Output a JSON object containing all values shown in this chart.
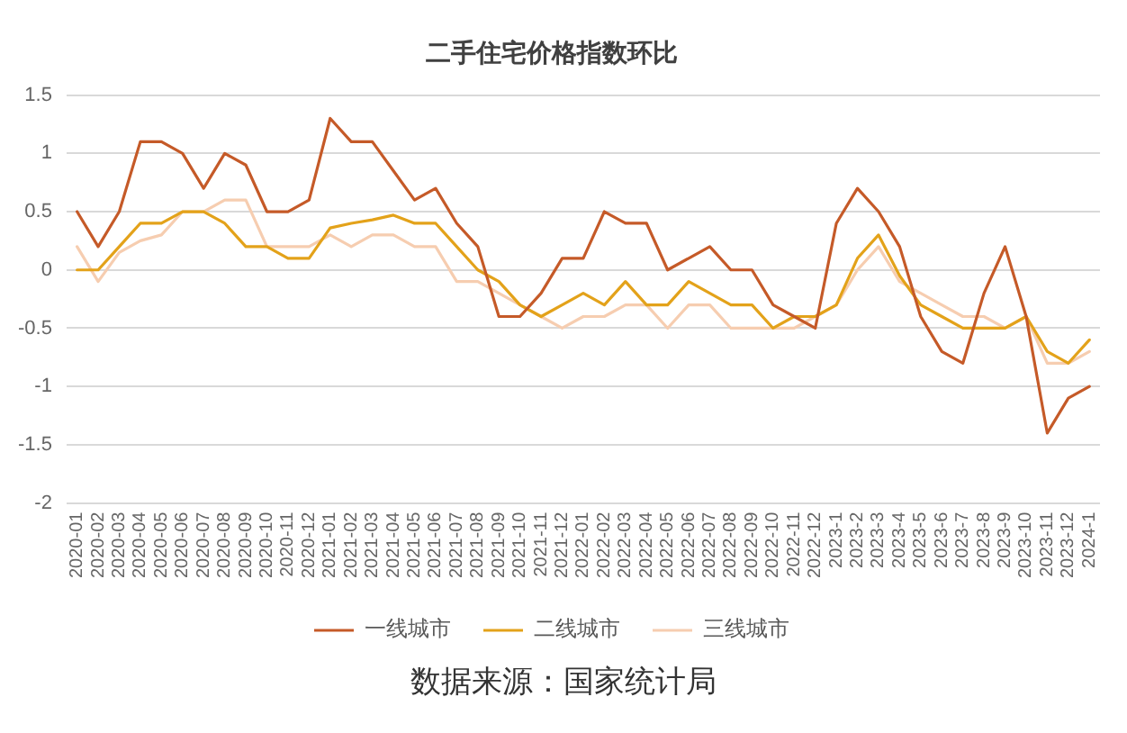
{
  "chart_data": {
    "type": "line",
    "title": "二手住宅价格指数环比",
    "categories": [
      "2020-01",
      "2020-02",
      "2020-03",
      "2020-04",
      "2020-05",
      "2020-06",
      "2020-07",
      "2020-08",
      "2020-09",
      "2020-10",
      "2020-11",
      "2020-12",
      "2021-01",
      "2021-02",
      "2021-03",
      "2021-04",
      "2021-05",
      "2021-06",
      "2021-07",
      "2021-08",
      "2021-09",
      "2021-10",
      "2021-11",
      "2021-12",
      "2022-01",
      "2022-02",
      "2022-03",
      "2022-04",
      "2022-05",
      "2022-06",
      "2022-07",
      "2022-08",
      "2022-09",
      "2022-10",
      "2022-11",
      "2022-12",
      "2023-1",
      "2023-2",
      "2023-3",
      "2023-4",
      "2023-5",
      "2023-6",
      "2023-7",
      "2023-8",
      "2023-9",
      "2023-10",
      "2023-11",
      "2023-12",
      "2024-1"
    ],
    "series": [
      {
        "name": "一线城市",
        "color": "#c55a28",
        "values": [
          0.5,
          0.2,
          0.5,
          1.1,
          1.1,
          1.0,
          0.7,
          1.0,
          0.9,
          0.5,
          0.5,
          0.6,
          1.3,
          1.1,
          1.1,
          0.85,
          0.6,
          0.7,
          0.4,
          0.2,
          -0.4,
          -0.4,
          -0.2,
          0.1,
          0.1,
          0.5,
          0.4,
          0.4,
          0,
          0.1,
          0.2,
          0,
          0,
          -0.3,
          -0.4,
          -0.5,
          0.4,
          0.7,
          0.5,
          0.2,
          -0.4,
          -0.7,
          -0.8,
          -0.2,
          0.2,
          -0.4,
          -1.4,
          -1.1,
          -1.0
        ]
      },
      {
        "name": "二线城市",
        "color": "#e3a21a",
        "values": [
          0,
          0,
          0.2,
          0.4,
          0.4,
          0.5,
          0.5,
          0.4,
          0.2,
          0.2,
          0.1,
          0.1,
          0.36,
          0.4,
          0.43,
          0.47,
          0.4,
          0.4,
          0.2,
          0,
          -0.1,
          -0.3,
          -0.4,
          -0.3,
          -0.2,
          -0.3,
          -0.1,
          -0.3,
          -0.3,
          -0.1,
          -0.2,
          -0.3,
          -0.3,
          -0.5,
          -0.4,
          -0.4,
          -0.3,
          0.1,
          0.3,
          -0.05,
          -0.3,
          -0.4,
          -0.5,
          -0.5,
          -0.5,
          -0.4,
          -0.7,
          -0.8,
          -0.6
        ]
      },
      {
        "name": "三线城市",
        "color": "#f6cdb0",
        "values": [
          0.2,
          -0.1,
          0.15,
          0.25,
          0.3,
          0.5,
          0.5,
          0.6,
          0.6,
          0.2,
          0.2,
          0.2,
          0.3,
          0.2,
          0.3,
          0.3,
          0.2,
          0.2,
          -0.1,
          -0.1,
          -0.2,
          -0.3,
          -0.4,
          -0.5,
          -0.4,
          -0.4,
          -0.3,
          -0.3,
          -0.5,
          -0.3,
          -0.3,
          -0.5,
          -0.5,
          -0.5,
          -0.5,
          -0.4,
          -0.3,
          0,
          0.2,
          -0.1,
          -0.2,
          -0.3,
          -0.4,
          -0.4,
          -0.5,
          -0.4,
          -0.8,
          -0.8,
          -0.7
        ]
      }
    ],
    "ylim": [
      -2,
      1.5
    ],
    "yticks": [
      -2,
      -1.5,
      -1,
      -0.5,
      0,
      0.5,
      1,
      1.5
    ],
    "grid": "y",
    "legend": "bottom",
    "annotations": [
      "数据来源：国家统计局"
    ]
  }
}
